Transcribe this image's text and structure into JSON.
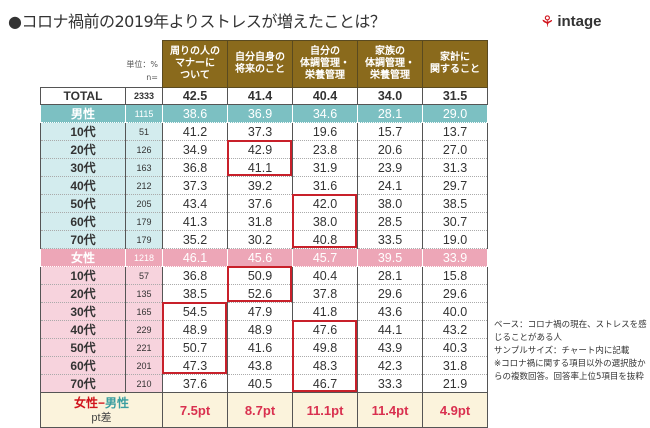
{
  "title": "●コロナ禍前の2019年よりストレスが増えたことは？",
  "logo": {
    "mark": "M",
    "text": "intage"
  },
  "unit": "単位：%",
  "n_label": "n=",
  "chart_data": {
    "type": "table",
    "columns": [
      "周りの人の\nマナーに\nついて",
      "自分自身の\n将来のこと",
      "自分の\n体調管理・\n栄養管理",
      "家族の\n体調管理・\n栄養管理",
      "家計に\n関すること"
    ],
    "total": {
      "label": "TOTAL",
      "n": "2333",
      "values": [
        "42.5",
        "41.4",
        "40.4",
        "34.0",
        "31.5"
      ]
    },
    "groups": [
      {
        "key": "male",
        "label": "男性",
        "n": "1115",
        "values": [
          "38.6",
          "36.9",
          "34.6",
          "28.1",
          "29.0"
        ],
        "rows": [
          {
            "label": "10代",
            "n": "51",
            "values": [
              "41.2",
              "37.3",
              "19.6",
              "15.7",
              "13.7"
            ]
          },
          {
            "label": "20代",
            "n": "126",
            "values": [
              "34.9",
              "42.9",
              "23.8",
              "20.6",
              "27.0"
            ]
          },
          {
            "label": "30代",
            "n": "163",
            "values": [
              "36.8",
              "41.1",
              "31.9",
              "23.9",
              "31.3"
            ]
          },
          {
            "label": "40代",
            "n": "212",
            "values": [
              "37.3",
              "39.2",
              "31.6",
              "24.1",
              "29.7"
            ]
          },
          {
            "label": "50代",
            "n": "205",
            "values": [
              "43.4",
              "37.6",
              "42.0",
              "38.0",
              "38.5"
            ]
          },
          {
            "label": "60代",
            "n": "179",
            "values": [
              "41.3",
              "31.8",
              "38.0",
              "28.5",
              "30.7"
            ]
          },
          {
            "label": "70代",
            "n": "179",
            "values": [
              "35.2",
              "30.2",
              "40.8",
              "33.5",
              "19.0"
            ]
          }
        ]
      },
      {
        "key": "female",
        "label": "女性",
        "n": "1218",
        "values": [
          "46.1",
          "45.6",
          "45.7",
          "39.5",
          "33.9"
        ],
        "rows": [
          {
            "label": "10代",
            "n": "57",
            "values": [
              "36.8",
              "50.9",
              "40.4",
              "28.1",
              "15.8"
            ]
          },
          {
            "label": "20代",
            "n": "135",
            "values": [
              "38.5",
              "52.6",
              "37.8",
              "29.6",
              "29.6"
            ]
          },
          {
            "label": "30代",
            "n": "165",
            "values": [
              "54.5",
              "47.9",
              "41.8",
              "43.6",
              "40.0"
            ]
          },
          {
            "label": "40代",
            "n": "229",
            "values": [
              "48.9",
              "48.9",
              "47.6",
              "44.1",
              "43.2"
            ]
          },
          {
            "label": "50代",
            "n": "221",
            "values": [
              "50.7",
              "41.6",
              "49.8",
              "43.9",
              "40.3"
            ]
          },
          {
            "label": "60代",
            "n": "201",
            "values": [
              "47.3",
              "43.8",
              "48.3",
              "42.3",
              "31.8"
            ]
          },
          {
            "label": "70代",
            "n": "210",
            "values": [
              "37.6",
              "40.5",
              "46.7",
              "33.3",
              "21.9"
            ]
          }
        ]
      }
    ],
    "diff": {
      "label_female": "女性",
      "label_dash": "−",
      "label_male": "男性",
      "label_sub": "pt差",
      "values": [
        "7.5pt",
        "8.7pt",
        "11.1pt",
        "11.4pt",
        "4.9pt"
      ]
    },
    "highlights": [
      {
        "group": 0,
        "col": 1,
        "from": 1,
        "to": 2
      },
      {
        "group": 0,
        "col": 2,
        "from": 4,
        "to": 6
      },
      {
        "group": 1,
        "col": 1,
        "from": 0,
        "to": 1
      },
      {
        "group": 1,
        "col": 0,
        "from": 2,
        "to": 5
      },
      {
        "group": 1,
        "col": 2,
        "from": 3,
        "to": 6
      }
    ]
  },
  "notes": [
    "ベース：コロナ禍の現在、ストレスを感じることがある人",
    "サンプルサイズ：チャート内に記載",
    "※コロナ禍に関する項目以外の選択肢からの複数回答。回答率上位5項目を抜粋"
  ]
}
